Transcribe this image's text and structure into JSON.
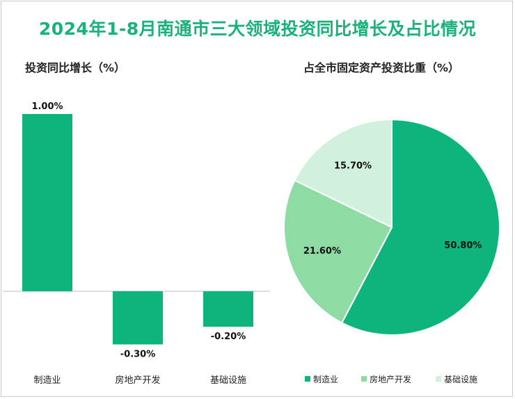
{
  "title": "2024年1-8月南通市三大领域投资同比增长及占比情况",
  "chart_data": [
    {
      "type": "bar",
      "title": "投资同比增长（%）",
      "categories": [
        "制造业",
        "房地产开发",
        "基础设施"
      ],
      "values": [
        1.0,
        -0.3,
        -0.2
      ],
      "value_labels": [
        "1.00%",
        "-0.30%",
        "-0.20%"
      ],
      "ylim": [
        -0.35,
        1.0
      ],
      "color": "#0db57c",
      "grid": false
    },
    {
      "type": "pie",
      "title": "占全市固定资产投资比重（%）",
      "categories": [
        "制造业",
        "房地产开发",
        "基础设施"
      ],
      "values": [
        50.8,
        21.6,
        15.7
      ],
      "value_labels": [
        "50.80%",
        "21.60%",
        "15.70%"
      ],
      "colors": [
        "#0db57c",
        "#8edba4",
        "#d1f0dd"
      ],
      "legend": "bottom"
    }
  ]
}
